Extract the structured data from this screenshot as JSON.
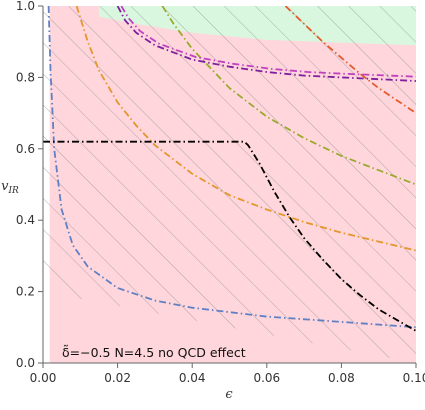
{
  "chart_data": {
    "type": "line",
    "xlabel": "ϵ",
    "ylabel": "v",
    "ylabel_sub": "IR",
    "xlim": [
      0.0,
      0.1
    ],
    "ylim": [
      0.0,
      1.0
    ],
    "xticks": [
      0.0,
      0.02,
      0.04,
      0.06,
      0.08,
      0.1
    ],
    "xtick_labels": [
      "0.00",
      "0.02",
      "0.04",
      "0.06",
      "0.08",
      "0.10"
    ],
    "yticks": [
      0.0,
      0.2,
      0.4,
      0.6,
      0.8,
      1.0
    ],
    "ytick_labels": [
      "0.0",
      "0.2",
      "0.4",
      "0.6",
      "0.8",
      "1.0"
    ],
    "grid": false,
    "annotation": "δ̃=−0.5  N=4.5  no QCD effect",
    "colors": {
      "pink_region": "#ffd6dc",
      "green_region": "#d9f7df",
      "hatch": "#909090",
      "blue": "#5f80c4",
      "orange": "#e5962a",
      "olive": "#9aaa2e",
      "red_orange": "#e45b2c",
      "purple": "#7d1f9e",
      "magenta": "#c040c0",
      "black": "#000000"
    },
    "regions": [
      {
        "color": "pink_region",
        "x": [
          0.0018,
          0.1,
          0.1,
          0.0018
        ],
        "y": [
          0.0,
          0.0,
          1.0,
          1.0
        ]
      },
      {
        "color": "green_region",
        "x": [
          0.015,
          0.1,
          0.1,
          0.06,
          0.04,
          0.025,
          0.015
        ],
        "y": [
          1.0,
          1.0,
          0.89,
          0.905,
          0.925,
          0.95,
          0.97
        ]
      }
    ],
    "hatch_region": {
      "x": [
        0.0,
        0.1,
        0.1,
        0.0
      ],
      "y": [
        0.2,
        0.0,
        1.0,
        1.0
      ]
    },
    "series": [
      {
        "color": "blue",
        "x": [
          0.0015,
          0.002,
          0.003,
          0.005,
          0.008,
          0.012,
          0.02,
          0.03,
          0.04,
          0.06,
          0.08,
          0.1
        ],
        "y": [
          1.0,
          0.82,
          0.6,
          0.43,
          0.33,
          0.27,
          0.21,
          0.175,
          0.155,
          0.13,
          0.115,
          0.1
        ]
      },
      {
        "color": "orange",
        "x": [
          0.009,
          0.012,
          0.015,
          0.02,
          0.025,
          0.03,
          0.04,
          0.05,
          0.06,
          0.07,
          0.08,
          0.09,
          0.1
        ],
        "y": [
          1.0,
          0.9,
          0.82,
          0.73,
          0.665,
          0.61,
          0.53,
          0.47,
          0.43,
          0.395,
          0.365,
          0.34,
          0.315
        ]
      },
      {
        "color": "olive",
        "x": [
          0.032,
          0.035,
          0.04,
          0.05,
          0.06,
          0.07,
          0.08,
          0.09,
          0.1
        ],
        "y": [
          1.0,
          0.95,
          0.88,
          0.77,
          0.69,
          0.63,
          0.58,
          0.54,
          0.5
        ]
      },
      {
        "color": "red_orange",
        "x": [
          0.065,
          0.07,
          0.075,
          0.08,
          0.085,
          0.09,
          0.095,
          0.1
        ],
        "y": [
          1.0,
          0.95,
          0.9,
          0.855,
          0.81,
          0.77,
          0.735,
          0.7
        ]
      },
      {
        "color": "purple",
        "x": [
          0.02,
          0.022,
          0.025,
          0.03,
          0.04,
          0.05,
          0.06,
          0.07,
          0.08,
          0.09,
          0.1
        ],
        "y": [
          1.0,
          0.96,
          0.925,
          0.89,
          0.85,
          0.83,
          0.815,
          0.805,
          0.8,
          0.795,
          0.79
        ]
      },
      {
        "color": "magenta",
        "x": [
          0.021,
          0.023,
          0.026,
          0.031,
          0.041,
          0.051,
          0.061,
          0.071,
          0.081,
          0.091,
          0.1
        ],
        "y": [
          1.0,
          0.965,
          0.93,
          0.895,
          0.857,
          0.838,
          0.824,
          0.815,
          0.81,
          0.806,
          0.802
        ]
      },
      {
        "color": "black",
        "x": [
          0.0,
          0.054,
          0.055,
          0.058,
          0.062,
          0.066,
          0.07,
          0.075,
          0.08,
          0.085,
          0.09,
          0.095,
          0.1
        ],
        "y": [
          0.62,
          0.62,
          0.61,
          0.56,
          0.48,
          0.41,
          0.35,
          0.29,
          0.235,
          0.19,
          0.15,
          0.12,
          0.09
        ]
      }
    ]
  }
}
